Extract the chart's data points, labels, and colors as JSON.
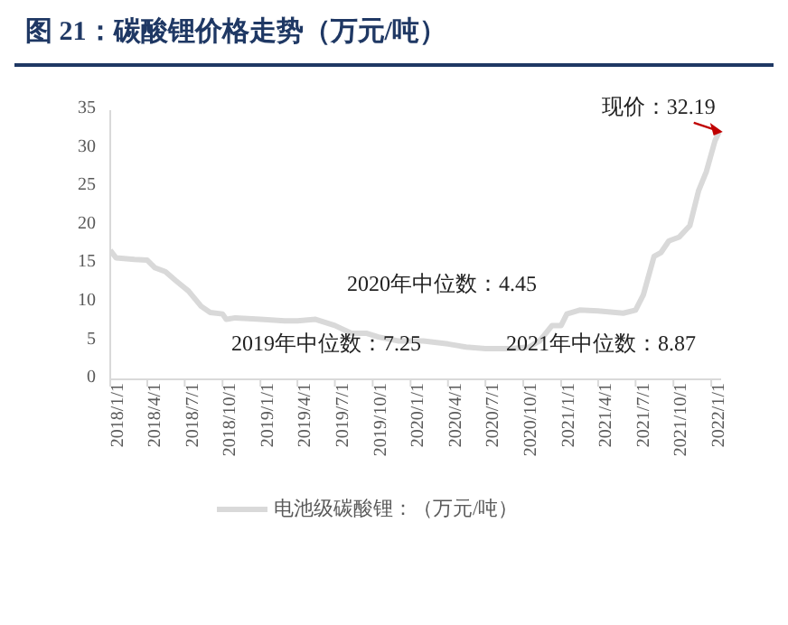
{
  "chart_data": {
    "type": "line",
    "title": "图 21：碳酸锂价格走势（万元/吨）",
    "x": [
      "2018-01-01",
      "2018-01-15",
      "2018-03-01",
      "2018-04-01",
      "2018-04-20",
      "2018-05-15",
      "2018-06-10",
      "2018-07-10",
      "2018-08-10",
      "2018-09-01",
      "2018-10-01",
      "2018-10-10",
      "2018-11-01",
      "2019-01-01",
      "2019-03-01",
      "2019-04-01",
      "2019-05-15",
      "2019-07-01",
      "2019-08-10",
      "2019-09-15",
      "2019-10-15",
      "2019-12-01",
      "2020-02-01",
      "2020-04-01",
      "2020-05-15",
      "2020-07-01",
      "2020-09-01",
      "2020-10-15",
      "2020-11-10",
      "2020-12-10",
      "2021-01-01",
      "2021-01-15",
      "2021-02-15",
      "2021-04-01",
      "2021-06-01",
      "2021-07-01",
      "2021-07-20",
      "2021-08-15",
      "2021-09-01",
      "2021-09-20",
      "2021-10-15",
      "2021-11-10",
      "2021-12-01",
      "2021-12-20",
      "2022-01-10",
      "2022-01-20"
    ],
    "series": [
      {
        "name": "电池级碳酸锂：（万元/吨）",
        "color": "#d9d9d9",
        "values": [
          16.8,
          15.8,
          15.6,
          15.5,
          14.5,
          14,
          12.8,
          11.5,
          9.5,
          8.7,
          8.5,
          7.8,
          8,
          7.8,
          7.6,
          7.6,
          7.8,
          7,
          6,
          6,
          5.5,
          5,
          5,
          4.6,
          4.2,
          4,
          4,
          4.2,
          5,
          7,
          7,
          8.5,
          9,
          8.9,
          8.6,
          9,
          11,
          16,
          16.5,
          18,
          18.5,
          20,
          24.5,
          27,
          31,
          32.19
        ]
      }
    ],
    "xlim": [
      "2018-01-01",
      "2022-01-25"
    ],
    "xticks": [
      {
        "value": "2018-01-01",
        "label": "2018/1/1"
      },
      {
        "value": "2018-04-01",
        "label": "2018/4/1"
      },
      {
        "value": "2018-07-01",
        "label": "2018/7/1"
      },
      {
        "value": "2018-10-01",
        "label": "2018/10/1"
      },
      {
        "value": "2019-01-01",
        "label": "2019/1/1"
      },
      {
        "value": "2019-04-01",
        "label": "2019/4/1"
      },
      {
        "value": "2019-07-01",
        "label": "2019/7/1"
      },
      {
        "value": "2019-10-01",
        "label": "2019/10/1"
      },
      {
        "value": "2020-01-01",
        "label": "2020/1/1"
      },
      {
        "value": "2020-04-01",
        "label": "2020/4/1"
      },
      {
        "value": "2020-07-01",
        "label": "2020/7/1"
      },
      {
        "value": "2020-10-01",
        "label": "2020/10/1"
      },
      {
        "value": "2021-01-01",
        "label": "2021/1/1"
      },
      {
        "value": "2021-04-01",
        "label": "2021/4/1"
      },
      {
        "value": "2021-07-01",
        "label": "2021/7/1"
      },
      {
        "value": "2021-10-01",
        "label": "2021/10/1"
      },
      {
        "value": "2022-01-01",
        "label": "2022/1/1"
      }
    ],
    "ylim": [
      0,
      35
    ],
    "yticks": [
      0,
      5,
      10,
      15,
      20,
      25,
      30,
      35
    ],
    "grid": false,
    "legend": "bottom",
    "marker": "none",
    "line_style": "solid",
    "annotations": [
      {
        "text": "现价：32.19",
        "x": "2022-01-20",
        "y": 32.19
      },
      "2020年中位数：4.45",
      "2019年中位数：7.25",
      "2021年中位数：8.87"
    ]
  }
}
